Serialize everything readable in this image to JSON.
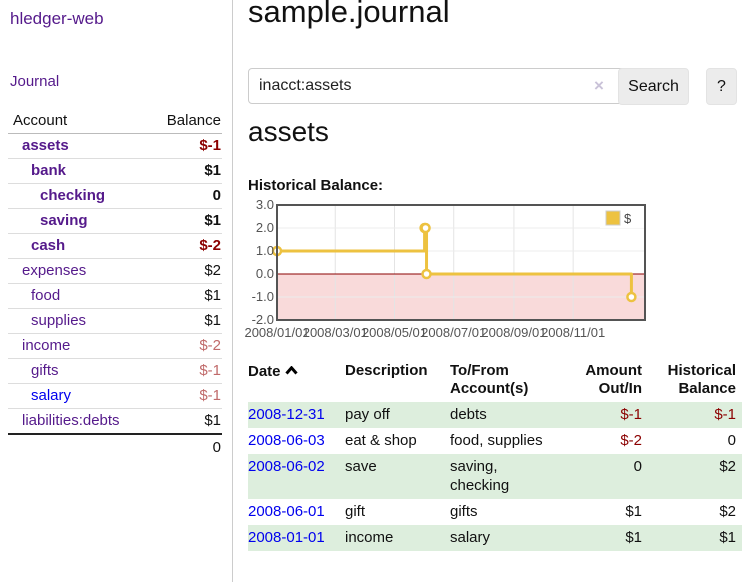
{
  "app": {
    "brand": "hledger-web",
    "nav_journal": "Journal"
  },
  "colors": {
    "link_visited": "#551a8b",
    "link_unvisited": "#0000ee",
    "negative_strong": "#8b0000",
    "negative_light": "#c06a6a",
    "row_stripe_green": "#ddeedd",
    "series_gold": "#edc240",
    "negative_region": "#f9dada",
    "zero_line": "#8b0000"
  },
  "sidebar": {
    "columns": {
      "account": "Account",
      "balance": "Balance"
    },
    "accounts": [
      {
        "name": "assets",
        "depth": 1,
        "balance": "$-1",
        "bold": true,
        "balance_color": "negative"
      },
      {
        "name": "bank",
        "depth": 2,
        "balance": "$1",
        "bold": true,
        "balance_color": "normal"
      },
      {
        "name": "checking",
        "depth": 3,
        "balance": "0",
        "bold": true,
        "balance_color": "normal"
      },
      {
        "name": "saving",
        "depth": 3,
        "balance": "$1",
        "bold": true,
        "balance_color": "normal"
      },
      {
        "name": "cash",
        "depth": 2,
        "balance": "$-2",
        "bold": true,
        "balance_color": "negative"
      },
      {
        "name": "expenses",
        "depth": 1,
        "balance": "$2",
        "bold": false,
        "balance_color": "normal"
      },
      {
        "name": "food",
        "depth": 2,
        "balance": "$1",
        "bold": false,
        "balance_color": "normal"
      },
      {
        "name": "supplies",
        "depth": 2,
        "balance": "$1",
        "bold": false,
        "balance_color": "normal"
      },
      {
        "name": "income",
        "depth": 1,
        "balance": "$-2",
        "bold": false,
        "balance_color": "negative-light"
      },
      {
        "name": "gifts",
        "depth": 2,
        "balance": "$-1",
        "bold": false,
        "balance_color": "negative-light"
      },
      {
        "name": "salary",
        "depth": 2,
        "balance": "$-1",
        "bold": false,
        "balance_color": "negative-light",
        "unvisited": true
      },
      {
        "name": "liabilities:debts",
        "depth": 1,
        "balance": "$1",
        "bold": false,
        "balance_color": "normal"
      }
    ],
    "total": "0"
  },
  "main": {
    "title": "sample.journal",
    "search": {
      "value": "inacct:assets",
      "clear_icon": "×",
      "button": "Search",
      "help_button": "?"
    },
    "account_heading": "assets",
    "chart_label": "Historical Balance:"
  },
  "chart_data": {
    "type": "line",
    "title": "Historical Balance:",
    "style": "steps-with-points",
    "series": [
      {
        "name": "$",
        "color": "#edc240",
        "points": [
          [
            "2008-01-01",
            1
          ],
          [
            "2008-06-01",
            2
          ],
          [
            "2008-06-02",
            2
          ],
          [
            "2008-06-03",
            0
          ],
          [
            "2008-12-31",
            -1
          ]
        ]
      }
    ],
    "x_ticks": [
      {
        "date": "2008-01-01",
        "label": "2008/01/01"
      },
      {
        "date": "2008-03-01",
        "label": "2008/03/01"
      },
      {
        "date": "2008-05-01",
        "label": "2008/05/01"
      },
      {
        "date": "2008-07-01",
        "label": "2008/07/01"
      },
      {
        "date": "2008-09-01",
        "label": "2008/09/01"
      },
      {
        "date": "2008-11-01",
        "label": "2008/11/01"
      }
    ],
    "y_ticks": [
      {
        "v": 3,
        "label": "3.0"
      },
      {
        "v": 2,
        "label": "2.0"
      },
      {
        "v": 1,
        "label": "1.0"
      },
      {
        "v": 0,
        "label": "0.0"
      },
      {
        "v": -1,
        "label": "-1.0"
      },
      {
        "v": -2,
        "label": "-2.0"
      }
    ],
    "ylim": [
      -2,
      3
    ],
    "x_domain_days": 379,
    "legend": {
      "label": "$",
      "position": "top-right"
    },
    "grid": true
  },
  "register": {
    "headers": {
      "date": "Date",
      "description": "Description",
      "accounts": "To/From Account(s)",
      "amount": "Amount Out/In",
      "balance": "Historical Balance"
    },
    "sort": "ascending",
    "rows": [
      {
        "date": "2008-12-31",
        "description": "pay off",
        "accounts": "debts",
        "amount": "$-1",
        "balance": "$-1",
        "amount_negative": true,
        "balance_negative": true
      },
      {
        "date": "2008-06-03",
        "description": "eat & shop",
        "accounts": "food, supplies",
        "amount": "$-2",
        "balance": "0",
        "amount_negative": true,
        "balance_negative": false
      },
      {
        "date": "2008-06-02",
        "description": "save",
        "accounts": "saving, checking",
        "amount": "0",
        "balance": "$2",
        "amount_negative": false,
        "balance_negative": false
      },
      {
        "date": "2008-06-01",
        "description": "gift",
        "accounts": "gifts",
        "amount": "$1",
        "balance": "$2",
        "amount_negative": false,
        "balance_negative": false
      },
      {
        "date": "2008-01-01",
        "description": "income",
        "accounts": "salary",
        "amount": "$1",
        "balance": "$1",
        "amount_negative": false,
        "balance_negative": false
      }
    ]
  }
}
